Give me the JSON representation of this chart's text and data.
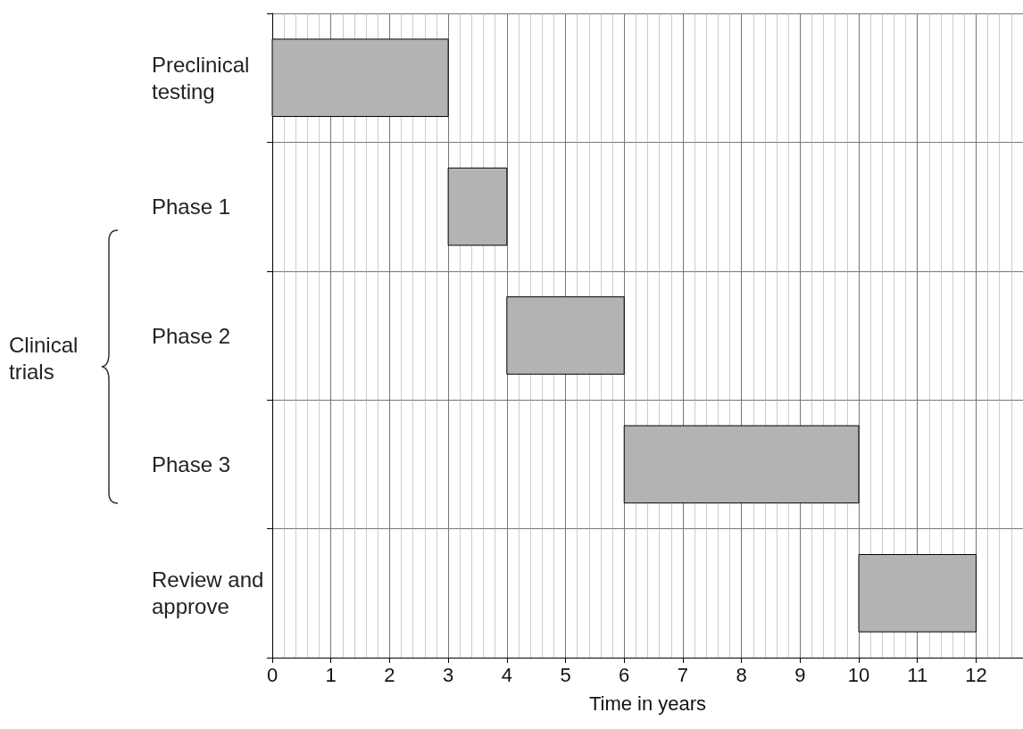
{
  "chart_data": {
    "type": "bar",
    "orientation": "horizontal",
    "categories": [
      "Preclinical\ntesting",
      "Phase 1",
      "Phase 2",
      "Phase 3",
      "Review and\napprove"
    ],
    "base": [
      0,
      3,
      4,
      6,
      10
    ],
    "values": [
      3,
      1,
      2,
      4,
      2
    ],
    "color": "#b3b3b3",
    "xlabel": "Time in years",
    "xlim": [
      0,
      12.8
    ],
    "xticks": [
      0,
      1,
      2,
      3,
      4,
      5,
      6,
      7,
      8,
      9,
      10,
      11,
      12
    ],
    "grid": true,
    "annotations": [
      "Clinical\ntrials"
    ]
  }
}
